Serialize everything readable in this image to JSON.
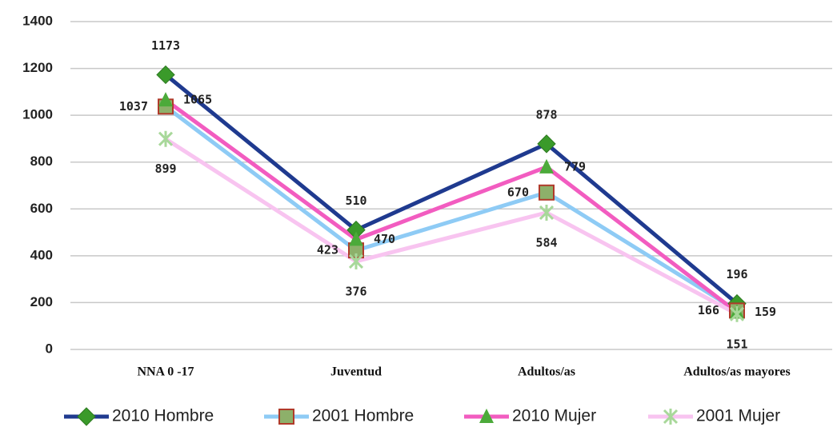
{
  "chart_data": {
    "type": "line",
    "categories": [
      "NNA 0 -17",
      "Juventud",
      "Adultos/as",
      "Adultos/as  mayores"
    ],
    "series": [
      {
        "name": "2010 Hombre",
        "color": "#1f3a8f",
        "marker": "diamond",
        "marker_color": "#3a9a2a",
        "values": [
          1173,
          510,
          878,
          196
        ]
      },
      {
        "name": "2001 Hombre",
        "color": "#8ecbf5",
        "marker": "square",
        "marker_color": "#8db06a",
        "values": [
          1037,
          423,
          670,
          166
        ]
      },
      {
        "name": "2010 Mujer",
        "color": "#f25cc0",
        "marker": "triangle",
        "marker_color": "#4caa3a",
        "values": [
          1065,
          470,
          779,
          159
        ]
      },
      {
        "name": "2001 Mujer",
        "color": "#f8c4f0",
        "marker": "star",
        "marker_color": "#a8d89a",
        "values": [
          899,
          376,
          584,
          151
        ]
      }
    ],
    "ylim": [
      0,
      1400
    ],
    "yticks": [
      0,
      200,
      400,
      600,
      800,
      1000,
      1200,
      1400
    ],
    "grid": true,
    "legend": "bottom"
  }
}
